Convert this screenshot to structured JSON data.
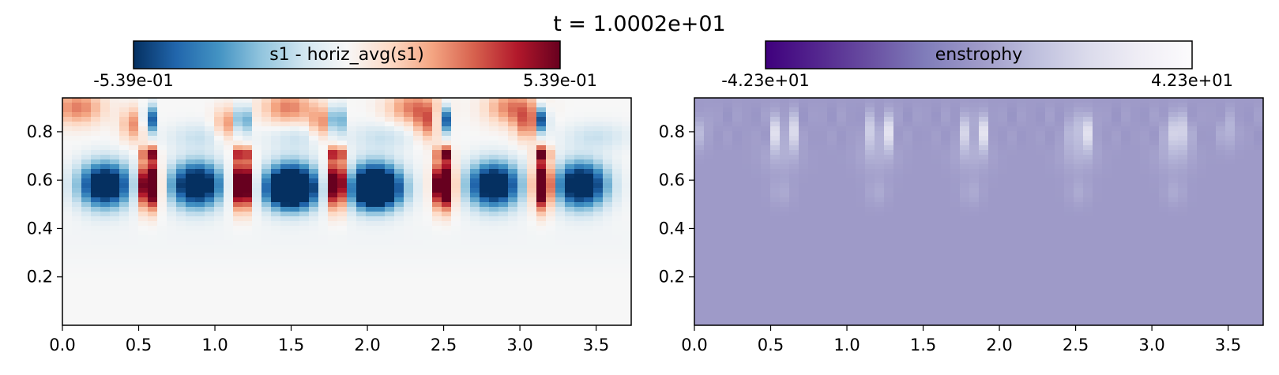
{
  "figure": {
    "title": "t = 1.0002e+01"
  },
  "chart_data": [
    {
      "type": "heatmap",
      "title": "",
      "colorbar": {
        "label": "s1 - horiz_avg(s1)",
        "min_label": "-5.39e-01",
        "max_label": "5.39e-01",
        "range": [
          -0.539,
          0.539
        ],
        "colormap": "RdBu_r",
        "colors": [
          "#053061",
          "#2166ac",
          "#4393c3",
          "#92c5de",
          "#d1e5f0",
          "#f7f7f7",
          "#fddbc7",
          "#f4a582",
          "#d6604d",
          "#b2182b",
          "#67001f"
        ]
      },
      "xlim": [
        0,
        3.73
      ],
      "ylim": [
        0,
        0.94
      ],
      "xticks": [
        0.0,
        0.5,
        1.0,
        1.5,
        2.0,
        2.5,
        3.0,
        3.5
      ],
      "xtick_labels": [
        "0.0",
        "0.5",
        "1.0",
        "1.5",
        "2.0",
        "2.5",
        "3.0",
        "3.5"
      ],
      "yticks": [
        0.2,
        0.4,
        0.6,
        0.8
      ],
      "ytick_labels": [
        "0.2",
        "0.4",
        "0.6",
        "0.8"
      ],
      "grid": false,
      "field": {
        "blue_cells_centers_x": [
          0.28,
          0.88,
          1.5,
          2.05,
          2.83,
          3.4
        ],
        "red_plume_centers_x": [
          0.57,
          1.18,
          1.8,
          2.5,
          3.15
        ],
        "band_y": [
          0.45,
          0.75
        ],
        "top_spikes_y": [
          0.78,
          0.94
        ]
      }
    },
    {
      "type": "heatmap",
      "title": "",
      "colorbar": {
        "label": "enstrophy",
        "min_label": "-4.23e+01",
        "max_label": "4.23e+01",
        "range": [
          -42.3,
          42.3
        ],
        "colormap": "Purples_r",
        "colors": [
          "#3f007d",
          "#54278f",
          "#6a51a3",
          "#807dba",
          "#9e9ac8",
          "#bcbddc",
          "#dadaeb",
          "#efedf5",
          "#fcfbfd"
        ]
      },
      "xlim": [
        0,
        3.73
      ],
      "ylim": [
        0,
        0.94
      ],
      "xticks": [
        0.0,
        0.5,
        1.0,
        1.5,
        2.0,
        2.5,
        3.0,
        3.5
      ],
      "xtick_labels": [
        "0.0",
        "0.5",
        "1.0",
        "1.5",
        "2.0",
        "2.5",
        "3.0",
        "3.5"
      ],
      "yticks": [
        0.2,
        0.4,
        0.6,
        0.8
      ],
      "ytick_labels": [
        "0.2",
        "0.4",
        "0.6",
        "0.8"
      ],
      "grid": false,
      "field": {
        "background_value": 0,
        "bright_spots_x": [
          0.57,
          1.2,
          1.82,
          2.52,
          3.15
        ],
        "bright_spots_y": 0.8
      }
    }
  ]
}
